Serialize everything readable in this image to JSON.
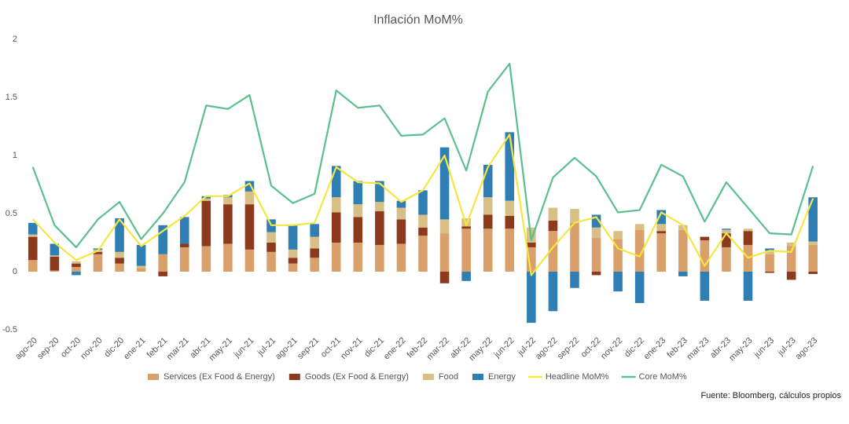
{
  "chart_data": {
    "type": "bar",
    "title": "Inflación MoM%",
    "source": "Fuente: Bloomberg, cálculos propios",
    "categories": [
      "ago-20",
      "sep-20",
      "oct-20",
      "nov-20",
      "dic-20",
      "ene-21",
      "feb-21",
      "mar-21",
      "abr-21",
      "may-21",
      "jun-21",
      "jul-21",
      "ago-21",
      "sep-21",
      "oct-21",
      "nov-21",
      "dic-21",
      "ene-22",
      "feb-22",
      "mar-22",
      "abr-22",
      "may-22",
      "jun-22",
      "jul-22",
      "ago-22",
      "sep-22",
      "oct-22",
      "nov-22",
      "dic-22",
      "ene-23",
      "feb-23",
      "mar-23",
      "abr-23",
      "may-23",
      "jun-23",
      "jul-23",
      "ago-23"
    ],
    "ylim": [
      -0.5,
      2
    ],
    "yticks": [
      -0.5,
      0,
      0.5,
      1,
      1.5,
      2
    ],
    "grid": false,
    "legend": "bottom",
    "series": [
      {
        "name": "Services (Ex Food & Energy)",
        "color": "#d9a06c",
        "stack": true,
        "values": [
          0.1,
          0.01,
          0.04,
          0.15,
          0.07,
          0.03,
          0.15,
          0.21,
          0.22,
          0.24,
          0.19,
          0.17,
          0.07,
          0.12,
          0.25,
          0.25,
          0.23,
          0.24,
          0.31,
          0.33,
          0.37,
          0.37,
          0.37,
          0.21,
          0.35,
          0.42,
          0.29,
          0.28,
          0.36,
          0.33,
          0.36,
          0.27,
          0.21,
          0.23,
          0.15,
          0.22,
          0.23
        ]
      },
      {
        "name": "Goods (Ex Food & Energy)",
        "color": "#8b3a1e",
        "stack": true,
        "values": [
          0.2,
          0.12,
          0.03,
          0.02,
          0.05,
          0.0,
          -0.04,
          0.03,
          0.39,
          0.34,
          0.39,
          0.08,
          0.05,
          0.08,
          0.26,
          0.22,
          0.29,
          0.21,
          0.07,
          -0.1,
          0.02,
          0.12,
          0.11,
          0.04,
          0.09,
          0.0,
          -0.03,
          0.0,
          0.0,
          0.02,
          0.0,
          0.03,
          0.12,
          0.12,
          -0.01,
          -0.07,
          -0.02
        ]
      },
      {
        "name": "Food",
        "color": "#d8bf86",
        "stack": true,
        "values": [
          0.02,
          0.01,
          0.02,
          0.02,
          0.05,
          0.02,
          0.0,
          0.0,
          0.02,
          0.06,
          0.11,
          0.09,
          0.07,
          0.1,
          0.13,
          0.11,
          0.08,
          0.1,
          0.11,
          0.12,
          0.07,
          0.15,
          0.13,
          0.13,
          0.11,
          0.12,
          0.09,
          0.07,
          0.05,
          0.06,
          0.04,
          0.0,
          0.03,
          0.02,
          0.03,
          0.03,
          0.03
        ]
      },
      {
        "name": "Energy",
        "color": "#2f7fb5",
        "stack": true,
        "values": [
          0.1,
          0.1,
          -0.03,
          0.01,
          0.29,
          0.18,
          0.25,
          0.23,
          0.02,
          0.02,
          0.09,
          0.11,
          0.21,
          0.11,
          0.27,
          0.2,
          0.18,
          0.06,
          0.21,
          0.62,
          -0.08,
          0.28,
          0.59,
          -0.44,
          -0.34,
          -0.14,
          0.11,
          -0.17,
          -0.27,
          0.12,
          -0.04,
          -0.25,
          0.01,
          -0.25,
          0.02,
          0.0,
          0.38
        ]
      },
      {
        "name": "Headline MoM%",
        "color": "#f5e642",
        "line": true,
        "values": [
          0.45,
          0.25,
          0.1,
          0.18,
          0.45,
          0.22,
          0.35,
          0.48,
          0.65,
          0.65,
          0.76,
          0.4,
          0.4,
          0.42,
          0.9,
          0.77,
          0.76,
          0.6,
          0.7,
          1.0,
          0.4,
          0.9,
          1.18,
          -0.03,
          0.21,
          0.42,
          0.47,
          0.2,
          0.13,
          0.51,
          0.4,
          0.05,
          0.33,
          0.12,
          0.18,
          0.17,
          0.63
        ]
      },
      {
        "name": "Core MoM%",
        "color": "#5bbf8f",
        "line": true,
        "values": [
          0.9,
          0.4,
          0.21,
          0.45,
          0.6,
          0.28,
          0.5,
          0.77,
          1.43,
          1.4,
          1.52,
          0.74,
          0.59,
          0.67,
          1.56,
          1.41,
          1.43,
          1.17,
          1.18,
          1.32,
          0.87,
          1.55,
          1.79,
          0.27,
          0.81,
          0.98,
          0.82,
          0.51,
          0.53,
          0.92,
          0.82,
          0.43,
          0.77,
          0.55,
          0.33,
          0.32,
          0.91
        ]
      }
    ]
  }
}
